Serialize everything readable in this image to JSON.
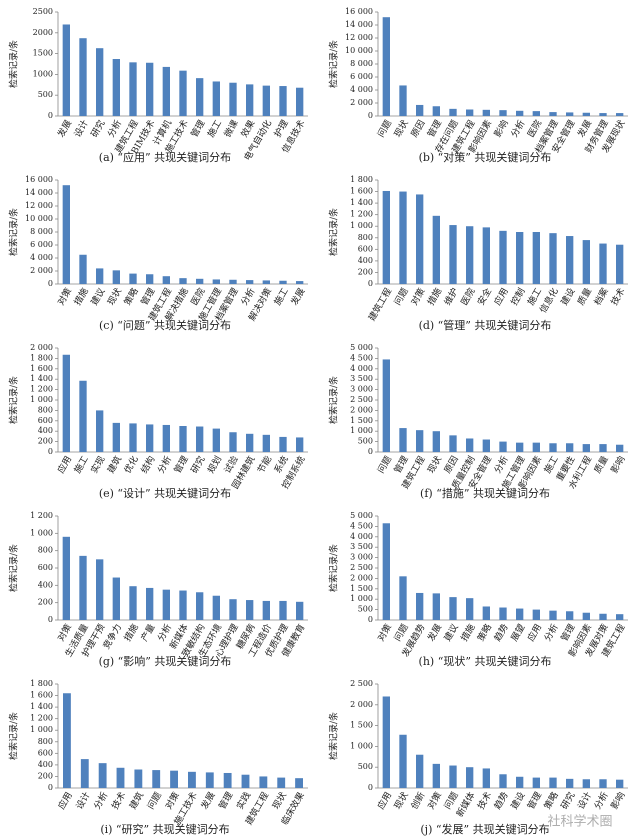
{
  "chart_data": [
    {
      "type": "bar",
      "title": "(a) “应用” 共现关键词分布",
      "ylabel": "检索记录/条",
      "color": "#4f81bd",
      "categories": [
        "发展",
        "设计",
        "研究",
        "分析",
        "建筑工程",
        "BIM技术",
        "计算机",
        "施工技术",
        "管理",
        "施工",
        "微课",
        "效果",
        "电气自动化",
        "护理",
        "信息技术"
      ],
      "values": [
        2200,
        1870,
        1630,
        1370,
        1290,
        1280,
        1180,
        1090,
        910,
        830,
        800,
        760,
        730,
        720,
        680
      ],
      "ylim": [
        0,
        2500
      ],
      "yticks": [
        0,
        500,
        1000,
        1500,
        2000,
        2500
      ]
    },
    {
      "type": "bar",
      "title": "(b) “对策” 共现关键词分布",
      "ylabel": "检索记录/条",
      "color": "#4f81bd",
      "categories": [
        "问题",
        "现状",
        "原因",
        "管理",
        "存在问题",
        "建筑工程",
        "影响因素",
        "影响",
        "分析",
        "医院",
        "档案管理",
        "安全管理",
        "发展",
        "财务管理",
        "发展现状"
      ],
      "values": [
        15200,
        4700,
        1700,
        1500,
        1100,
        1000,
        950,
        900,
        800,
        750,
        600,
        550,
        500,
        450,
        450
      ],
      "ylim": [
        0,
        16000
      ],
      "yticks": [
        0,
        {
          "value": 2000,
          "label": "2 000"
        },
        {
          "value": 4000,
          "label": "4 000"
        },
        {
          "value": 6000,
          "label": "6 000"
        },
        {
          "value": 8000,
          "label": "8 000"
        },
        {
          "value": 10000,
          "label": "10 000"
        },
        {
          "value": 12000,
          "label": "12 000"
        },
        {
          "value": 14000,
          "label": "14 000"
        },
        {
          "value": 16000,
          "label": "16 000"
        }
      ]
    },
    {
      "type": "bar",
      "title": "(c) “问题” 共现关键词分布",
      "ylabel": "检索记录/条",
      "color": "#4f81bd",
      "categories": [
        "对策",
        "措施",
        "建议",
        "现状",
        "策略",
        "管理",
        "建筑工程",
        "解决措施",
        "医院",
        "施工管理",
        "档案管理",
        "分析",
        "解决对策",
        "施工",
        "发展"
      ],
      "values": [
        15200,
        4500,
        2400,
        2100,
        1600,
        1500,
        1200,
        900,
        800,
        700,
        650,
        600,
        550,
        500,
        450
      ],
      "ylim": [
        0,
        16000
      ],
      "yticks": [
        0,
        {
          "value": 2000,
          "label": "2 000"
        },
        {
          "value": 4000,
          "label": "4 000"
        },
        {
          "value": 6000,
          "label": "6 000"
        },
        {
          "value": 8000,
          "label": "8 000"
        },
        {
          "value": 10000,
          "label": "10 000"
        },
        {
          "value": 12000,
          "label": "12 000"
        },
        {
          "value": 14000,
          "label": "14 000"
        },
        {
          "value": 16000,
          "label": "16 000"
        }
      ]
    },
    {
      "type": "bar",
      "title": "(d) “管理” 共现关键词分布",
      "ylabel": "检索记录/条",
      "color": "#4f81bd",
      "categories": [
        "建筑工程",
        "问题",
        "对策",
        "措施",
        "维护",
        "医院",
        "安全",
        "应用",
        "控制",
        "施工",
        "信息化",
        "建设",
        "质量",
        "档案",
        "技术"
      ],
      "values": [
        1610,
        1600,
        1550,
        1180,
        1020,
        1000,
        980,
        920,
        900,
        900,
        880,
        830,
        760,
        700,
        680
      ],
      "ylim": [
        0,
        1800
      ],
      "yticks": [
        0,
        200,
        400,
        600,
        800,
        {
          "value": 1000,
          "label": "1 000"
        },
        {
          "value": 1200,
          "label": "1 200"
        },
        {
          "value": 1400,
          "label": "1 400"
        },
        {
          "value": 1600,
          "label": "1 600"
        },
        {
          "value": 1800,
          "label": "1 800"
        }
      ]
    },
    {
      "type": "bar",
      "title": "(e) “设计” 共现关键词分布",
      "ylabel": "检索记录/条",
      "color": "#4f81bd",
      "categories": [
        "应用",
        "施工",
        "实现",
        "建筑",
        "优化",
        "结构",
        "分析",
        "管理",
        "研究",
        "规划",
        "试验",
        "园林建筑",
        "节能",
        "系统",
        "控制系统"
      ],
      "values": [
        1870,
        1370,
        800,
        560,
        550,
        530,
        520,
        500,
        490,
        450,
        380,
        350,
        330,
        290,
        280
      ],
      "ylim": [
        0,
        2000
      ],
      "yticks": [
        0,
        200,
        400,
        600,
        800,
        {
          "value": 1000,
          "label": "1 000"
        },
        {
          "value": 1200,
          "label": "1 200"
        },
        {
          "value": 1400,
          "label": "1 400"
        },
        {
          "value": 1600,
          "label": "1 600"
        },
        {
          "value": 1800,
          "label": "1 800"
        },
        {
          "value": 2000,
          "label": "2 000"
        }
      ]
    },
    {
      "type": "bar",
      "title": "(f) “措施” 共现关键词分布",
      "ylabel": "检索记录/条",
      "color": "#4f81bd",
      "categories": [
        "问题",
        "管理",
        "建筑工程",
        "现状",
        "原因",
        "质量控制",
        "安全管理",
        "分析",
        "施工管理",
        "影响因素",
        "施工",
        "重要性",
        "水利工程",
        "质量",
        "影响"
      ],
      "values": [
        4450,
        1150,
        1050,
        1000,
        800,
        650,
        600,
        500,
        450,
        450,
        420,
        420,
        380,
        380,
        350
      ],
      "ylim": [
        0,
        5000
      ],
      "yticks": [
        0,
        500,
        {
          "value": 1000,
          "label": "1 000"
        },
        {
          "value": 1500,
          "label": "1 500"
        },
        {
          "value": 2000,
          "label": "2 000"
        },
        {
          "value": 2500,
          "label": "2 500"
        },
        {
          "value": 3000,
          "label": "3 000"
        },
        {
          "value": 3500,
          "label": "3 500"
        },
        {
          "value": 4000,
          "label": "4 000"
        },
        {
          "value": 4500,
          "label": "4 500"
        },
        {
          "value": 5000,
          "label": "5 000"
        }
      ]
    },
    {
      "type": "bar",
      "title": "(g) “影响” 共现关键词分布",
      "ylabel": "检索记录/条",
      "color": "#4f81bd",
      "categories": [
        "对策",
        "生活质量",
        "护理干预",
        "竞争力",
        "措施",
        "产量",
        "分析",
        "新媒体",
        "致敏结构",
        "生态环境",
        "心理护理",
        "糖尿病",
        "工程造价",
        "优质护理",
        "健康教育"
      ],
      "values": [
        960,
        740,
        700,
        490,
        390,
        370,
        350,
        340,
        320,
        280,
        240,
        230,
        220,
        220,
        210
      ],
      "ylim": [
        0,
        1200
      ],
      "yticks": [
        0,
        200,
        400,
        600,
        800,
        {
          "value": 1000,
          "label": "1 000"
        },
        {
          "value": 1200,
          "label": "1 200"
        }
      ]
    },
    {
      "type": "bar",
      "title": "(h) “现状” 共现关键词分布",
      "ylabel": "检索记录/条",
      "color": "#4f81bd",
      "categories": [
        "对策",
        "问题",
        "发展趋势",
        "发展",
        "建议",
        "措施",
        "策略",
        "趋势",
        "展望",
        "应用",
        "分析",
        "管理",
        "影响因素",
        "发展对策",
        "建筑工程"
      ],
      "values": [
        4650,
        2100,
        1300,
        1280,
        1100,
        1050,
        650,
        600,
        550,
        500,
        450,
        420,
        350,
        300,
        280
      ],
      "ylim": [
        0,
        5000
      ],
      "yticks": [
        0,
        500,
        {
          "value": 1000,
          "label": "1 000"
        },
        {
          "value": 1500,
          "label": "1 500"
        },
        {
          "value": 2000,
          "label": "2 000"
        },
        {
          "value": 2500,
          "label": "2 500"
        },
        {
          "value": 3000,
          "label": "3 000"
        },
        {
          "value": 3500,
          "label": "3 500"
        },
        {
          "value": 4000,
          "label": "4 000"
        },
        {
          "value": 4500,
          "label": "4 500"
        },
        {
          "value": 5000,
          "label": "5 000"
        }
      ]
    },
    {
      "type": "bar",
      "title": "(i) “研究” 共现关键词分布",
      "ylabel": "检索记录/条",
      "color": "#4f81bd",
      "categories": [
        "应用",
        "设计",
        "分析",
        "技术",
        "建筑",
        "问题",
        "对策",
        "施工技术",
        "发展",
        "管理",
        "实践",
        "建筑工程",
        "现状",
        "临床效果"
      ],
      "values": [
        1640,
        500,
        430,
        350,
        320,
        310,
        300,
        280,
        270,
        260,
        230,
        200,
        180,
        170
      ],
      "ylim": [
        0,
        1800
      ],
      "yticks": [
        0,
        200,
        400,
        600,
        800,
        {
          "value": 1000,
          "label": "1 000"
        },
        {
          "value": 1200,
          "label": "1 200"
        },
        {
          "value": 1400,
          "label": "1 400"
        },
        {
          "value": 1600,
          "label": "1 600"
        },
        {
          "value": 1800,
          "label": "1 800"
        }
      ]
    },
    {
      "type": "bar",
      "title": "(j) “发展” 共现关键词分布",
      "ylabel": "检索记录/条",
      "color": "#4f81bd",
      "watermark": "社科学术圈",
      "categories": [
        "应用",
        "现状",
        "创新",
        "对策",
        "问题",
        "新媒体",
        "技术",
        "趋势",
        "建设",
        "管理",
        "策略",
        "研究",
        "设计",
        "分析",
        "影响"
      ],
      "values": [
        2200,
        1280,
        800,
        580,
        540,
        500,
        470,
        330,
        270,
        250,
        250,
        220,
        210,
        210,
        200
      ],
      "ylim": [
        0,
        2500
      ],
      "yticks": [
        0,
        500,
        {
          "value": 1000,
          "label": "1 000"
        },
        {
          "value": 1500,
          "label": "1 500"
        },
        {
          "value": 2000,
          "label": "2 000"
        },
        {
          "value": 2500,
          "label": "2 500"
        }
      ]
    }
  ]
}
